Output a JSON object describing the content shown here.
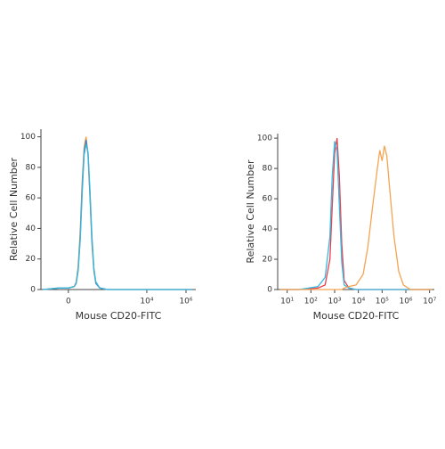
{
  "chart_data": [
    {
      "type": "line",
      "xlabel": "Mouse CD20-FITC",
      "ylabel": "Relative Cell Number",
      "x": [
        -1.3,
        -0.5,
        0,
        0.3,
        0.4,
        0.5,
        0.6,
        0.7,
        0.8,
        0.9,
        1.0,
        1.1,
        1.2,
        1.3,
        1.4,
        1.6,
        2,
        3,
        4,
        5,
        6.3
      ],
      "series": [
        {
          "color": "#f39a3c",
          "values": [
            0,
            1,
            1,
            2,
            5,
            15,
            38,
            70,
            93,
            100,
            88,
            60,
            30,
            12,
            4,
            1,
            0,
            0,
            0,
            0,
            0
          ]
        },
        {
          "color": "#4a7fc0",
          "values": [
            0,
            1,
            1,
            2,
            4,
            13,
            34,
            66,
            90,
            98,
            89,
            62,
            32,
            13,
            4,
            1,
            0,
            0,
            0,
            0,
            0
          ]
        },
        {
          "color": "#36b8e0",
          "values": [
            0,
            1,
            1,
            2,
            4,
            12,
            32,
            62,
            88,
            95,
            90,
            65,
            35,
            14,
            5,
            1,
            0,
            0,
            0,
            0,
            0
          ]
        }
      ],
      "xlim": [
        -1.4,
        6.5
      ],
      "ylim": [
        0,
        105
      ],
      "xticks": [
        0,
        {
          "value": 4,
          "label": "10⁴"
        },
        {
          "value": 6,
          "label": "10⁶"
        }
      ],
      "yticks": [
        0,
        20,
        40,
        60,
        80,
        100
      ]
    },
    {
      "type": "line",
      "xlabel": "Mouse CD20-FITC",
      "ylabel": "Relative Cell Number",
      "x": [
        0.7,
        1.5,
        2.3,
        2.6,
        2.8,
        2.9,
        3.0,
        3.1,
        3.2,
        3.3,
        3.4,
        3.6,
        3.9,
        4.2,
        4.4,
        4.6,
        4.8,
        4.9,
        5.0,
        5.1,
        5.2,
        5.3,
        5.5,
        5.7,
        5.9,
        6.2,
        7.1
      ],
      "series": [
        {
          "color": "#e8424f",
          "values": [
            0,
            0,
            1,
            3,
            20,
            55,
            90,
            100,
            75,
            30,
            6,
            1,
            0,
            0,
            0,
            0,
            0,
            0,
            0,
            0,
            0,
            0,
            0,
            0,
            0,
            0,
            0
          ]
        },
        {
          "color": "#36b8e0",
          "values": [
            0,
            0,
            2,
            8,
            35,
            75,
            98,
            92,
            55,
            18,
            3,
            1,
            0,
            0,
            0,
            0,
            0,
            0,
            0,
            0,
            0,
            0,
            0,
            0,
            0,
            0,
            0
          ]
        },
        {
          "color": "#f5a451",
          "values": [
            0,
            0,
            0,
            0,
            0,
            0,
            0,
            0,
            0,
            0,
            1,
            2,
            3,
            10,
            28,
            55,
            80,
            92,
            85,
            95,
            88,
            70,
            35,
            12,
            3,
            0,
            0
          ]
        }
      ],
      "xlim": [
        0.6,
        7.2
      ],
      "ylim": [
        0,
        103
      ],
      "xticks": [
        {
          "value": 1,
          "label": "10¹"
        },
        {
          "value": 2,
          "label": "10²"
        },
        {
          "value": 3,
          "label": "10³"
        },
        {
          "value": 4,
          "label": "10⁴"
        },
        {
          "value": 5,
          "label": "10⁵"
        },
        {
          "value": 6,
          "label": "10⁶"
        },
        {
          "value": 7,
          "label": "10⁷"
        }
      ],
      "yticks": [
        0,
        20,
        40,
        60,
        80,
        100
      ]
    }
  ]
}
